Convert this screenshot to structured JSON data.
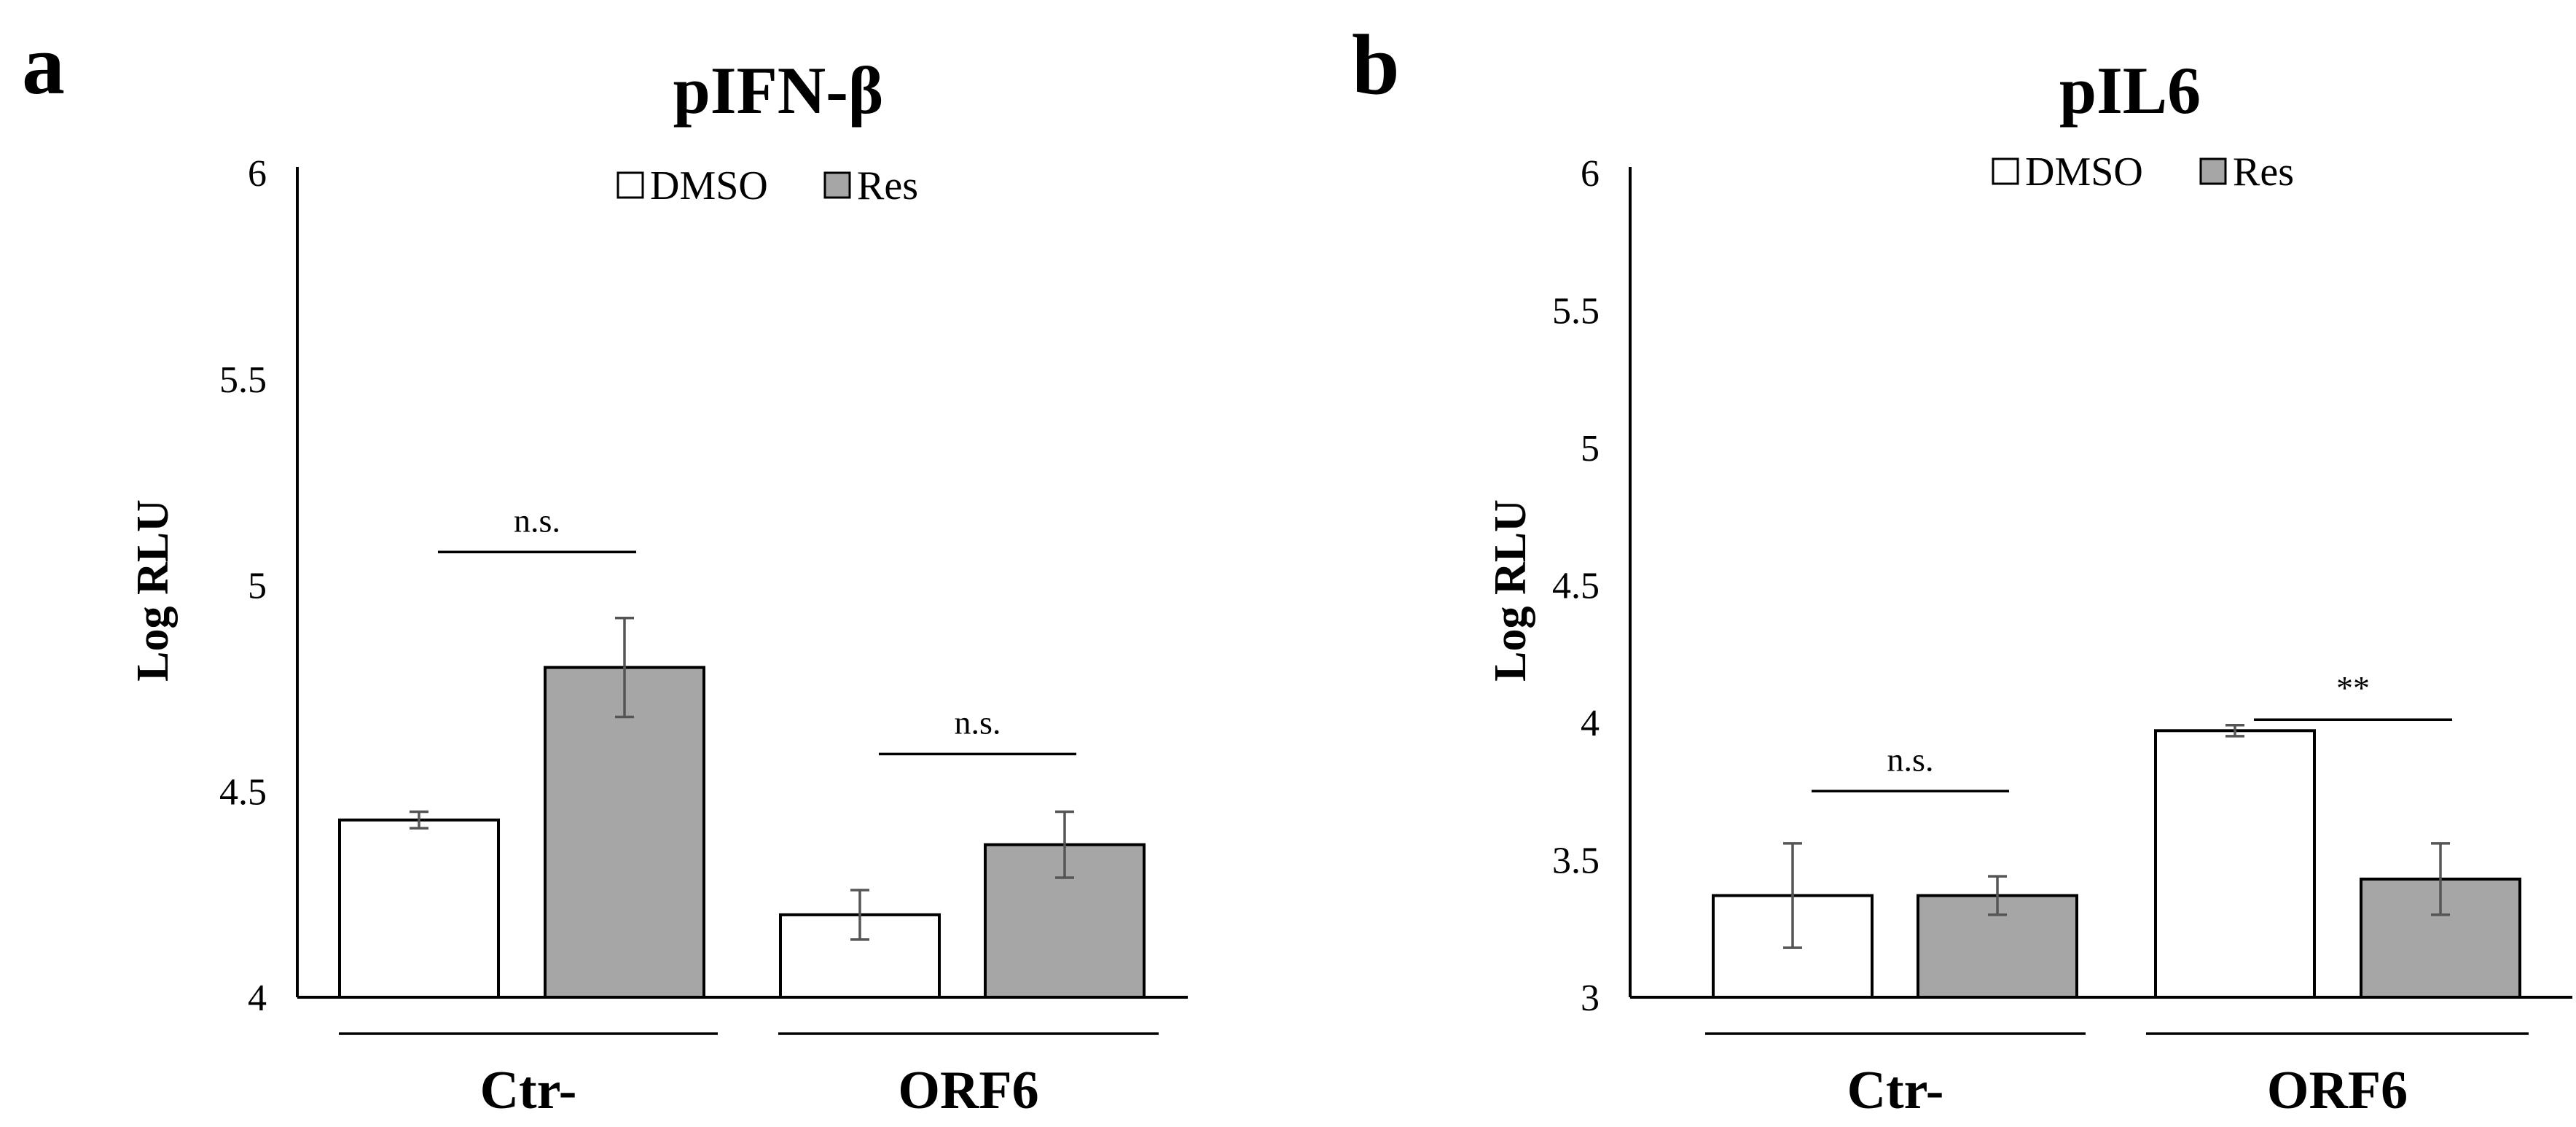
{
  "colors": {
    "dmso": "#ffffff",
    "res": "#a6a6a6",
    "axis": "#000000",
    "error": "#555555"
  },
  "chart_data": [
    {
      "panel": "a",
      "type": "bar",
      "title": "pIFN-β",
      "ylabel": "Log RLU",
      "xlabel": "",
      "ylim": [
        4,
        6
      ],
      "yticks": [
        "4",
        "4.5",
        "5",
        "5.5",
        "6"
      ],
      "tick_values": [
        4,
        4.5,
        5,
        5.5,
        6
      ],
      "categories": [
        "Ctr-",
        "ORF6"
      ],
      "legend": [
        "DMSO",
        "Res"
      ],
      "legend_position": "top-center",
      "series": [
        {
          "name": "DMSO",
          "values": [
            4.43,
            4.2
          ],
          "errors": [
            0.02,
            0.06
          ]
        },
        {
          "name": "Res",
          "values": [
            4.8,
            4.37
          ],
          "errors": [
            0.12,
            0.08
          ]
        }
      ],
      "significance": [
        "n.s.",
        "n.s."
      ],
      "sig_levels": [
        5.08,
        4.59
      ]
    },
    {
      "panel": "b",
      "type": "bar",
      "title": "pIL6",
      "ylabel": "Log RLU",
      "xlabel": "",
      "ylim": [
        3,
        6
      ],
      "yticks": [
        "3",
        "3.5",
        "4",
        "4.5",
        "5",
        "5.5",
        "6"
      ],
      "tick_values": [
        3,
        3.5,
        4,
        4.5,
        5,
        5.5,
        6
      ],
      "categories": [
        "Ctr-",
        "ORF6"
      ],
      "legend": [
        "DMSO",
        "Res"
      ],
      "legend_position": "top-center",
      "series": [
        {
          "name": "DMSO",
          "values": [
            3.37,
            3.97
          ],
          "errors": [
            0.19,
            0.02
          ]
        },
        {
          "name": "Res",
          "values": [
            3.37,
            3.43
          ],
          "errors": [
            0.07,
            0.13
          ]
        }
      ],
      "significance": [
        "n.s.",
        "**"
      ],
      "sig_levels": [
        3.75,
        4.01
      ]
    }
  ]
}
